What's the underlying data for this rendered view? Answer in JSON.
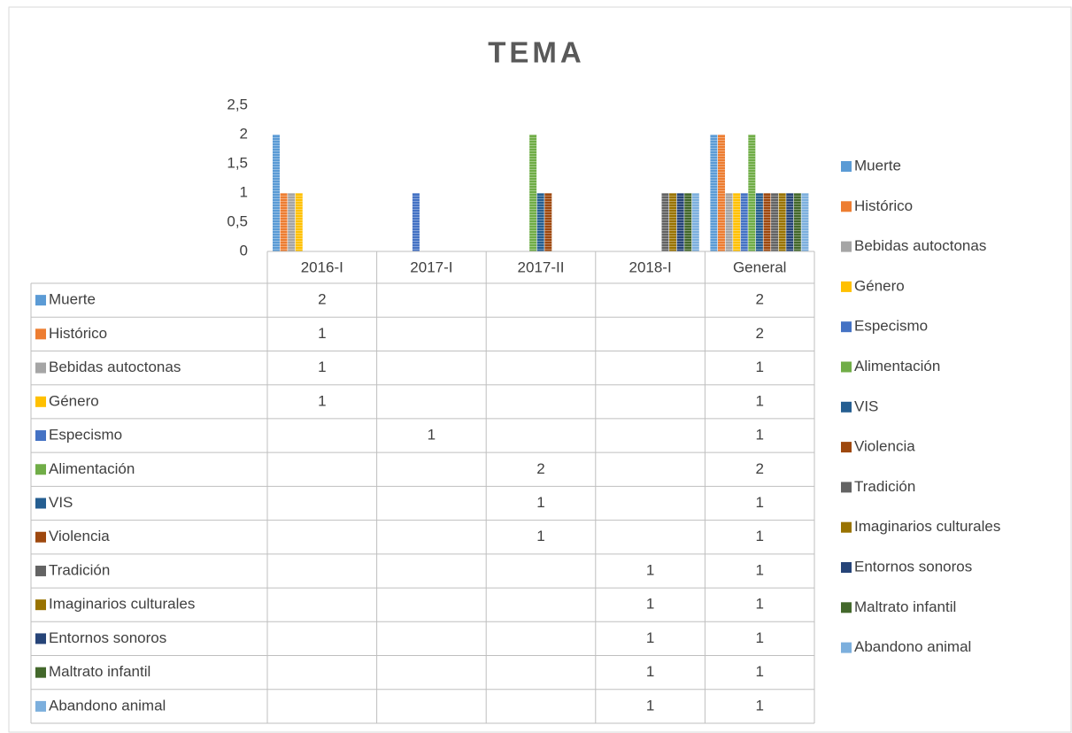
{
  "chart_data": {
    "type": "bar",
    "title": "TEMA",
    "categories": [
      "2016-I",
      "2017-I",
      "2017-II",
      "2018-I",
      "General"
    ],
    "ylim": [
      0,
      2.5
    ],
    "yticks": [
      0,
      {
        "value": 0.5,
        "label": "0,5"
      },
      1,
      {
        "value": 1.5,
        "label": "1,5"
      },
      2,
      {
        "value": 2.5,
        "label": "2,5"
      }
    ],
    "legend": "right",
    "data_table": true,
    "series": [
      {
        "name": "Muerte",
        "color": "#5b9bd5",
        "values": [
          2,
          null,
          null,
          null,
          2
        ]
      },
      {
        "name": "Histórico",
        "color": "#ed7d31",
        "values": [
          1,
          null,
          null,
          null,
          2
        ]
      },
      {
        "name": "Bebidas autoctonas",
        "color": "#a5a5a5",
        "values": [
          1,
          null,
          null,
          null,
          1
        ]
      },
      {
        "name": "Género",
        "color": "#ffc000",
        "values": [
          1,
          null,
          null,
          null,
          1
        ]
      },
      {
        "name": "Especismo",
        "color": "#4472c4",
        "values": [
          null,
          1,
          null,
          null,
          1
        ]
      },
      {
        "name": "Alimentación",
        "color": "#70ad47",
        "values": [
          null,
          null,
          2,
          null,
          2
        ]
      },
      {
        "name": "VIS",
        "color": "#255e91",
        "values": [
          null,
          null,
          1,
          null,
          1
        ]
      },
      {
        "name": "Violencia",
        "color": "#9e480e",
        "values": [
          null,
          null,
          1,
          null,
          1
        ]
      },
      {
        "name": "Tradición",
        "color": "#636363",
        "values": [
          null,
          null,
          null,
          1,
          1
        ]
      },
      {
        "name": "Imaginarios culturales",
        "color": "#997300",
        "values": [
          null,
          null,
          null,
          1,
          1
        ]
      },
      {
        "name": "Entornos sonoros",
        "color": "#264478",
        "values": [
          null,
          null,
          null,
          1,
          1
        ]
      },
      {
        "name": "Maltrato infantil",
        "color": "#43682b",
        "values": [
          null,
          null,
          null,
          1,
          1
        ]
      },
      {
        "name": "Abandono animal",
        "color": "#7cafdd",
        "values": [
          null,
          null,
          null,
          1,
          1
        ]
      }
    ]
  }
}
